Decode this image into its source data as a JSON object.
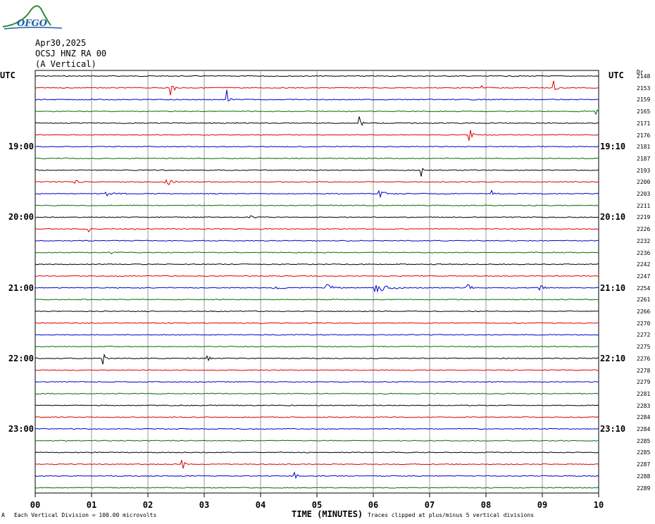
{
  "logo": {
    "text": "OFGO"
  },
  "header": {
    "date": "Apr30,2025",
    "station": "OCSJ HNZ RA 00",
    "component": "(A Vertical)"
  },
  "chart_data": {
    "type": "line",
    "title": "",
    "xlabel": "TIME (MINUTES)",
    "xlim": [
      0,
      10
    ],
    "x_ticks": [
      "00",
      "01",
      "02",
      "03",
      "04",
      "05",
      "06",
      "07",
      "08",
      "09",
      "10"
    ],
    "left_axis_label": "UTC",
    "right_axis_label": "UTC",
    "right_header": "Dr",
    "left_time_labels": [
      {
        "row": 6,
        "label": "19:00"
      },
      {
        "row": 12,
        "label": "20:00"
      },
      {
        "row": 18,
        "label": "21:00"
      },
      {
        "row": 24,
        "label": "22:00"
      },
      {
        "row": 30,
        "label": "23:00"
      }
    ],
    "right_time_labels": [
      {
        "row": 6,
        "label": "19:10"
      },
      {
        "row": 12,
        "label": "20:10"
      },
      {
        "row": 18,
        "label": "21:10"
      },
      {
        "row": 24,
        "label": "22:10"
      },
      {
        "row": 30,
        "label": "23:10"
      }
    ],
    "row_colors": [
      "#000000",
      "#e00000",
      "#0000d0",
      "#007000"
    ],
    "right_values": [
      "2148",
      "2153",
      "2159",
      "2165",
      "2171",
      "2176",
      "2181",
      "2187",
      "2193",
      "2200",
      "2203",
      "2211",
      "2219",
      "2226",
      "2232",
      "2236",
      "2242",
      "2247",
      "2254",
      "2261",
      "2266",
      "2270",
      "2272",
      "2275",
      "2276",
      "2278",
      "2279",
      "2281",
      "2283",
      "2284",
      "2284",
      "2285",
      "2285",
      "2287",
      "2288",
      "2289"
    ],
    "events": [
      {
        "row": 1,
        "x": 2.4,
        "amp": 18,
        "len": 0.12
      },
      {
        "row": 1,
        "x": 9.2,
        "amp": 14,
        "len": 0.12
      },
      {
        "row": 1,
        "x": 7.9,
        "amp": 4,
        "len": 0.3
      },
      {
        "row": 2,
        "x": 3.4,
        "amp": 20,
        "len": 0.1
      },
      {
        "row": 3,
        "x": 9.95,
        "amp": 9,
        "len": 0.1
      },
      {
        "row": 4,
        "x": 5.75,
        "amp": 18,
        "len": 0.1
      },
      {
        "row": 5,
        "x": 7.7,
        "amp": 12,
        "len": 0.12
      },
      {
        "row": 8,
        "x": 6.85,
        "amp": 30,
        "len": 0.05
      },
      {
        "row": 9,
        "x": 2.3,
        "amp": 12,
        "len": 0.25
      },
      {
        "row": 9,
        "x": 0.7,
        "amp": 4,
        "len": 0.3
      },
      {
        "row": 10,
        "x": 6.1,
        "amp": 5,
        "len": 0.4
      },
      {
        "row": 10,
        "x": 8.1,
        "amp": 6,
        "len": 0.2
      },
      {
        "row": 10,
        "x": 1.2,
        "amp": 4,
        "len": 0.6
      },
      {
        "row": 12,
        "x": 3.8,
        "amp": 7,
        "len": 0.12
      },
      {
        "row": 13,
        "x": 0.95,
        "amp": 4,
        "len": 0.1
      },
      {
        "row": 15,
        "x": 1.35,
        "amp": 4,
        "len": 0.1
      },
      {
        "row": 18,
        "x": 5.15,
        "amp": 10,
        "len": 0.3
      },
      {
        "row": 18,
        "x": 6.0,
        "amp": 9,
        "len": 0.6
      },
      {
        "row": 18,
        "x": 7.65,
        "amp": 8,
        "len": 0.2
      },
      {
        "row": 18,
        "x": 8.95,
        "amp": 6,
        "len": 0.2
      },
      {
        "row": 18,
        "x": 4.2,
        "amp": 4,
        "len": 0.4
      },
      {
        "row": 24,
        "x": 1.2,
        "amp": 12,
        "len": 0.12
      },
      {
        "row": 24,
        "x": 3.05,
        "amp": 12,
        "len": 0.1
      },
      {
        "row": 33,
        "x": 2.6,
        "amp": 24,
        "len": 0.1
      },
      {
        "row": 34,
        "x": 4.6,
        "amp": 16,
        "len": 0.1
      }
    ]
  },
  "footer": {
    "scale_note": "Each Vertical Division =  100.00 microvolts",
    "clip_note": "Traces clipped at plus/minus 5 vertical divisions",
    "corner_mark": "A"
  }
}
